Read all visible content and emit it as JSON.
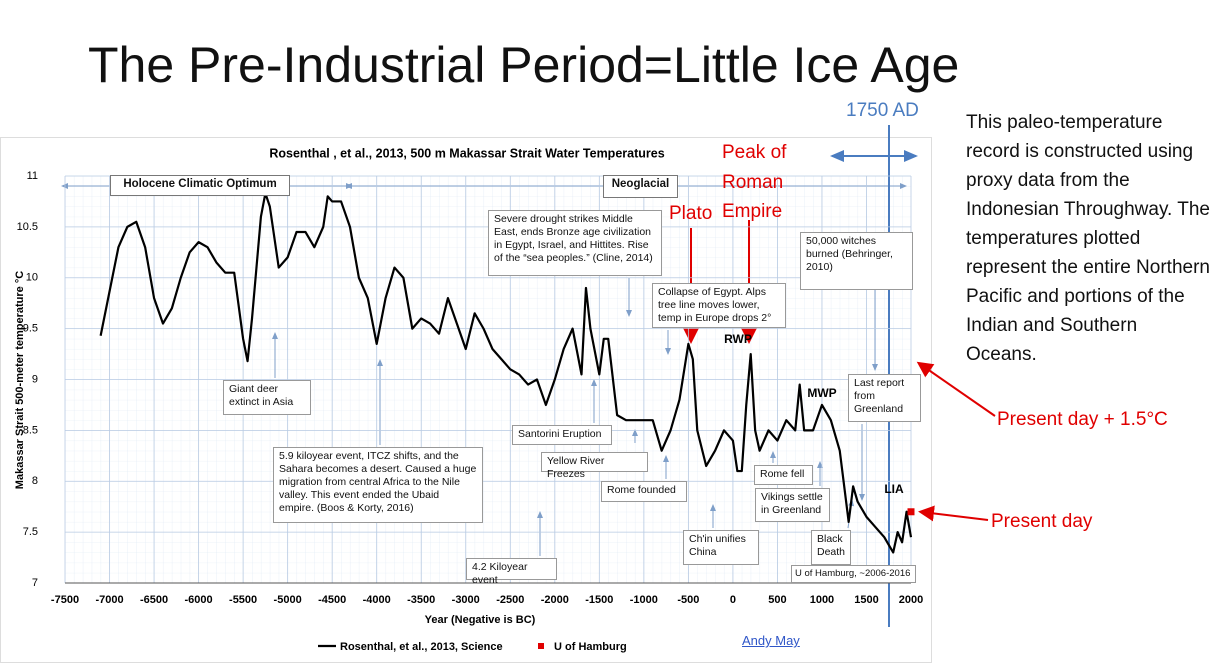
{
  "slide": {
    "title": "The Pre-Industrial Period=Little Ice Age",
    "description": "This paleo-temperature record is constructed using proxy data from the Indonesian Throughway. The temperatures plotted represent the entire Northern Pacific and portions of the Indian and Southern Oceans.",
    "marker_label": "1750 AD",
    "callouts": [
      "Plato",
      "Peak of Roman Empire",
      "Present day + 1.5°C",
      "Present day"
    ],
    "credit": "Andy May"
  },
  "chart_data": {
    "type": "line",
    "title": "Rosenthal , et al., 2013, 500 m Makassar Strait Water Temperatures",
    "x_label": "Year (Negative is BC)",
    "y_label": "Makassar Strait 500-meter temperature °C",
    "xlim": [
      -7500,
      2000
    ],
    "xticks": [
      -7500,
      -7000,
      -6500,
      -6000,
      -5500,
      -5000,
      -4500,
      -4000,
      -3500,
      -3000,
      -2500,
      -2000,
      -1500,
      -1000,
      -500,
      0,
      500,
      1000,
      1500,
      2000
    ],
    "ylim": [
      7,
      11
    ],
    "yticks": [
      7,
      7.5,
      8,
      8.5,
      9,
      9.5,
      10,
      10.5,
      11
    ],
    "grid": true,
    "x": [
      -7100,
      -6900,
      -6800,
      -6700,
      -6600,
      -6500,
      -6400,
      -6300,
      -6200,
      -6100,
      -6000,
      -5900,
      -5800,
      -5700,
      -5600,
      -5500,
      -5450,
      -5400,
      -5300,
      -5250,
      -5200,
      -5100,
      -5000,
      -4900,
      -4800,
      -4700,
      -4600,
      -4550,
      -4500,
      -4400,
      -4300,
      -4200,
      -4100,
      -4000,
      -3900,
      -3800,
      -3700,
      -3600,
      -3500,
      -3400,
      -3300,
      -3200,
      -3100,
      -3000,
      -2900,
      -2800,
      -2700,
      -2600,
      -2500,
      -2400,
      -2300,
      -2200,
      -2100,
      -2000,
      -1900,
      -1800,
      -1700,
      -1650,
      -1600,
      -1500,
      -1450,
      -1400,
      -1300,
      -1200,
      -1000,
      -900,
      -800,
      -700,
      -600,
      -500,
      -450,
      -400,
      -300,
      -200,
      -100,
      0,
      50,
      100,
      150,
      200,
      250,
      300,
      400,
      500,
      600,
      700,
      750,
      800,
      900,
      1000,
      1100,
      1200,
      1300,
      1350,
      1400,
      1500,
      1600,
      1700,
      1800,
      1850,
      1900,
      1950,
      2000
    ],
    "series": [
      {
        "name": "Rosenthal, et al., 2013, Science",
        "color": "#000000",
        "values": [
          9.43,
          10.3,
          10.5,
          10.55,
          10.3,
          9.8,
          9.55,
          9.7,
          10.0,
          10.25,
          10.35,
          10.3,
          10.15,
          10.05,
          10.05,
          9.4,
          9.18,
          9.6,
          10.6,
          10.83,
          10.7,
          10.1,
          10.2,
          10.45,
          10.45,
          10.3,
          10.5,
          10.8,
          10.75,
          10.75,
          10.5,
          10.0,
          9.8,
          9.35,
          9.8,
          10.1,
          10.0,
          9.5,
          9.6,
          9.55,
          9.45,
          9.8,
          9.55,
          9.3,
          9.65,
          9.5,
          9.3,
          9.2,
          9.1,
          9.05,
          8.95,
          9.0,
          8.75,
          9.0,
          9.3,
          9.5,
          9.05,
          9.9,
          9.5,
          9.05,
          9.4,
          9.4,
          8.65,
          8.6,
          8.6,
          8.6,
          8.3,
          8.5,
          8.8,
          9.35,
          9.2,
          8.5,
          8.15,
          8.3,
          8.5,
          8.4,
          8.1,
          8.1,
          8.75,
          9.25,
          8.5,
          8.3,
          8.5,
          8.4,
          8.6,
          8.5,
          8.95,
          8.5,
          8.5,
          8.75,
          8.6,
          8.3,
          7.6,
          7.95,
          7.8,
          7.65,
          7.55,
          7.45,
          7.3,
          7.5,
          7.4,
          7.7,
          7.45
        ]
      },
      {
        "name": "U of Hamburg",
        "color": "#e00000",
        "x": [
          2000
        ],
        "values": [
          7.7
        ]
      }
    ],
    "period_labels": [
      "RWP",
      "MWP",
      "LIA"
    ],
    "annotations": [
      "Holocene Climatic Optimum",
      "Neoglacial",
      "Severe drought strikes Middle East, ends Bronze age civilization in Egypt, Israel, and Hittites. Rise of the “sea peoples.” (Cline, 2014)",
      "Collapse of Egypt. Alps tree line moves lower, temp in Europe drops 2°",
      "50,000 witches burned (Behringer, 2010)",
      "Giant deer extinct in Asia",
      "5.9 kiloyear event, ITCZ shifts, and the Sahara becomes a desert.  Caused a huge migration from central Africa to the Nile valley.  This event ended the Ubaid empire. (Boos & Korty, 2016)",
      "Santorini Eruption",
      "Yellow River Freezes",
      "Rome founded",
      "Rome fell",
      "Vikings settle in Greenland",
      "Last report from Greenland",
      "Ch'in unifies China",
      "Black Death",
      "4.2 Kiloyear event",
      "U of Hamburg, ~2006-2016"
    ]
  }
}
